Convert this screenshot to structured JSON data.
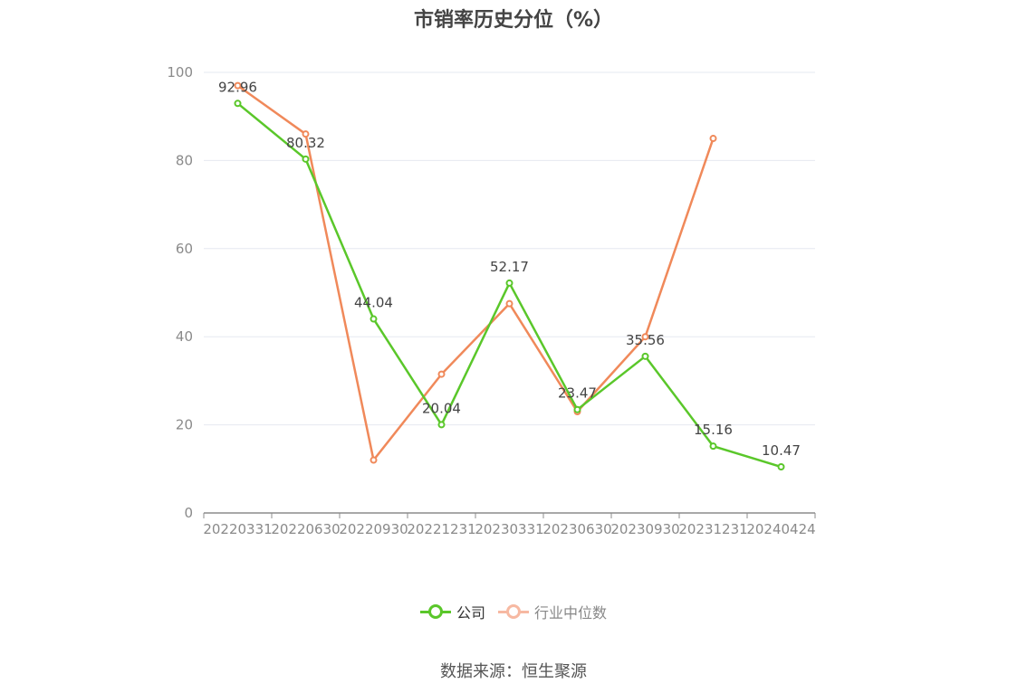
{
  "chart_data": {
    "type": "line",
    "title": "市销率历史分位（%）",
    "categories": [
      "20220331",
      "20220630",
      "20220930",
      "20221231",
      "20230331",
      "20230630",
      "20230930",
      "20231231",
      "20240424"
    ],
    "ylim": [
      0,
      100
    ],
    "yticks": [
      0,
      20,
      40,
      60,
      80,
      100
    ],
    "grid": true,
    "legend_position": "bottom",
    "series": [
      {
        "name": "公司",
        "color": "#5ac72a",
        "values": [
          92.96,
          80.32,
          44.04,
          20.04,
          52.17,
          23.47,
          35.56,
          15.16,
          10.47
        ],
        "labels": [
          "92.96",
          "80.32",
          "44.04",
          "20.04",
          "52.17",
          "23.47",
          "35.56",
          "15.16",
          "10.47"
        ]
      },
      {
        "name": "行业中位数",
        "color": "#f0895a",
        "values": [
          97,
          86,
          12,
          31.5,
          47.5,
          23,
          40,
          85,
          null
        ]
      }
    ]
  },
  "legend": {
    "company": "公司",
    "industry": "行业中位数",
    "company_color": "#5ac72a",
    "industry_color": "#f7b9a2"
  },
  "source": "数据来源：恒生聚源"
}
